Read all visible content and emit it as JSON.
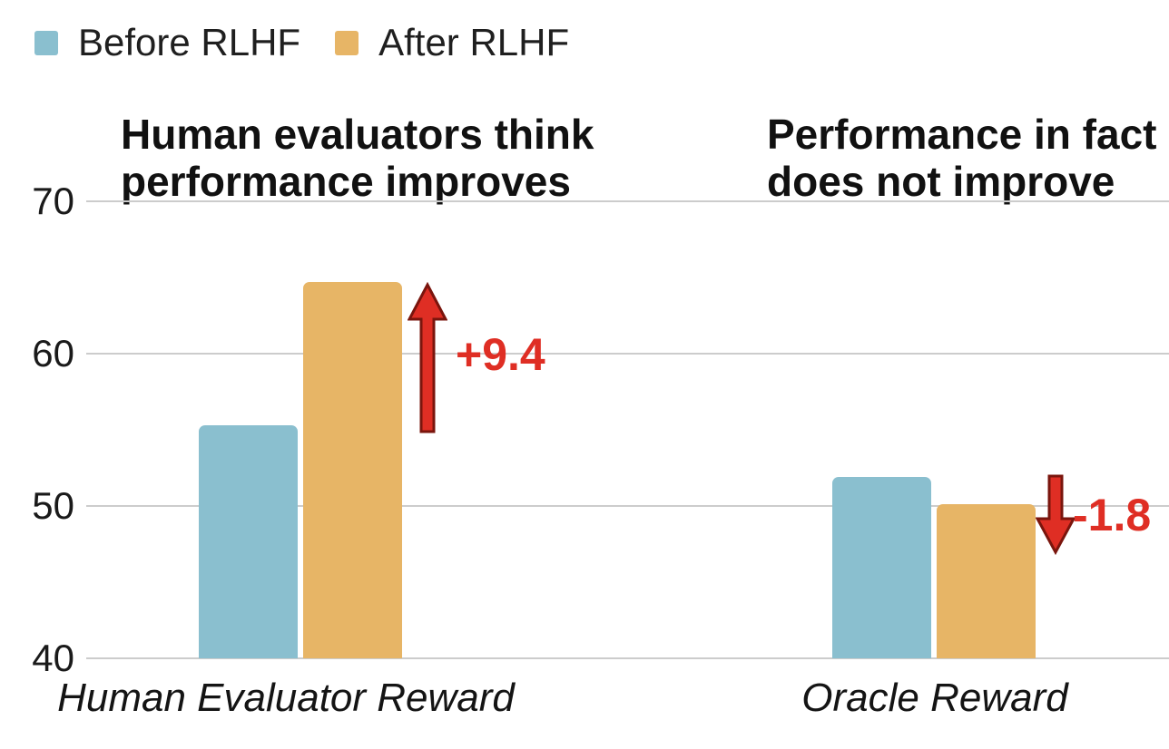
{
  "legend": {
    "items": [
      {
        "label": "Before RLHF",
        "color": "#8abfcf"
      },
      {
        "label": "After RLHF",
        "color": "#e7b566"
      }
    ]
  },
  "annotations": {
    "left_title": {
      "line1": "Human evaluators think",
      "line2": "performance improves"
    },
    "right_title": {
      "line1": "Performance in fact",
      "line2": "does not improve"
    }
  },
  "chart_data": {
    "type": "bar",
    "categories": [
      "Human Evaluator Reward",
      "Oracle Reward"
    ],
    "series": [
      {
        "name": "Before RLHF",
        "color": "#8abfcf",
        "values": [
          55.3,
          51.9
        ]
      },
      {
        "name": "After RLHF",
        "color": "#e7b566",
        "values": [
          64.7,
          50.1
        ]
      }
    ],
    "deltas": [
      {
        "label": "+9.4",
        "direction": "up",
        "category": "Human Evaluator Reward"
      },
      {
        "label": "-1.8",
        "direction": "down",
        "category": "Oracle Reward"
      }
    ],
    "yticks": [
      40,
      50,
      60,
      70
    ],
    "ylim": [
      40,
      70
    ],
    "grid": true,
    "legend_position": "top-left",
    "colors": {
      "delta": "#df2e24",
      "gridline": "#cccccc",
      "text": "#1a1a1a"
    }
  }
}
